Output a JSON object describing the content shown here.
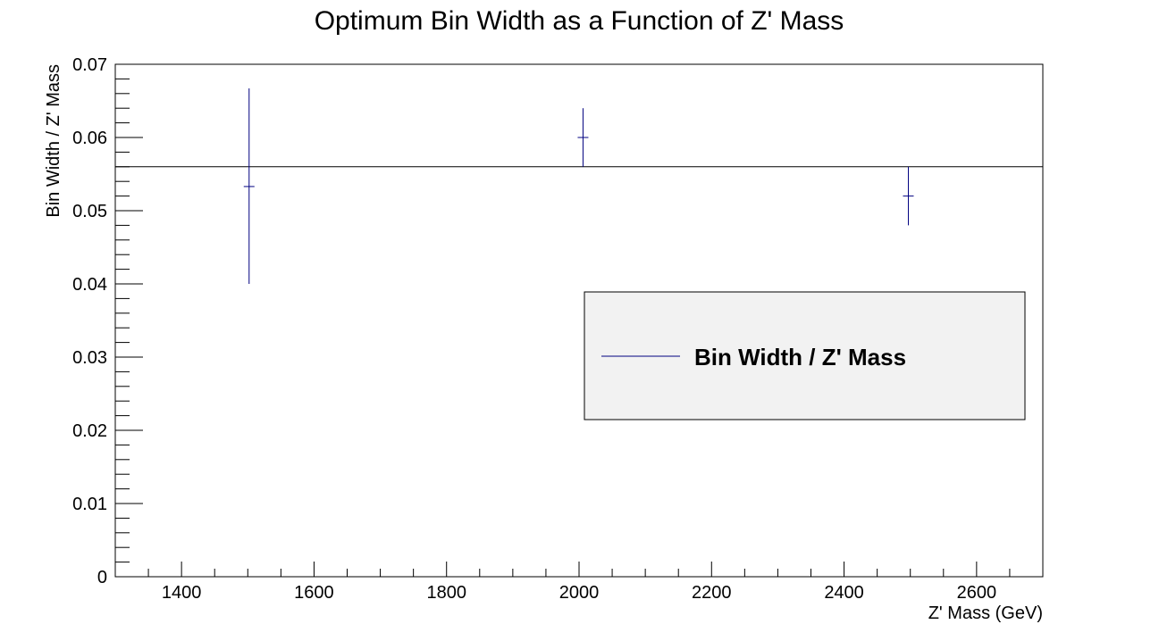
{
  "chart_data": {
    "type": "scatter",
    "title": "Optimum Bin Width as a Function of Z' Mass",
    "xlabel": "Z' Mass (GeV)",
    "ylabel": "Bin Width / Z' Mass",
    "xlim": [
      1300,
      2700
    ],
    "ylim": [
      0,
      0.07
    ],
    "x_ticks": [
      1400,
      1600,
      1800,
      2000,
      2200,
      2400,
      2600
    ],
    "x_tick_labels": [
      "1400",
      "1600",
      "1800",
      "2000",
      "2200",
      "2400",
      "2600"
    ],
    "y_ticks": [
      0,
      0.01,
      0.02,
      0.03,
      0.04,
      0.05,
      0.06,
      0.07
    ],
    "y_tick_labels": [
      "0",
      "0.01",
      "0.02",
      "0.03",
      "0.04",
      "0.05",
      "0.06",
      "0.07"
    ],
    "grid": false,
    "legend_position": "middle-right",
    "series": [
      {
        "name": "Bin Width / Z' Mass",
        "color": "#000080",
        "points": [
          {
            "x": 1502,
            "y": 0.0533,
            "y_low": 0.04,
            "y_high": 0.0667
          },
          {
            "x": 2006,
            "y": 0.06,
            "y_low": 0.056,
            "y_high": 0.064
          },
          {
            "x": 2497,
            "y": 0.052,
            "y_low": 0.048,
            "y_high": 0.056
          }
        ]
      }
    ],
    "reference_line": {
      "y": 0.056,
      "color": "#000000"
    }
  }
}
